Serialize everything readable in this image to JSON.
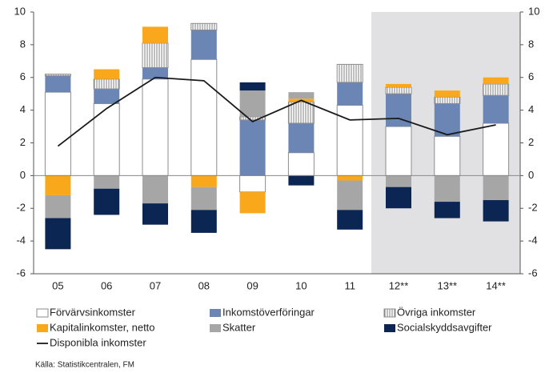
{
  "chart_data": {
    "type": "bar",
    "categories": [
      "05",
      "06",
      "07",
      "08",
      "09",
      "10",
      "11",
      "12**",
      "13**",
      "14**"
    ],
    "series": [
      {
        "name": "Förvärvsinkomster",
        "color": "#ffffff",
        "values": [
          5.1,
          4.4,
          5.9,
          7.1,
          -1.0,
          1.4,
          4.3,
          3.0,
          2.4,
          3.2
        ]
      },
      {
        "name": "Inkomstöverföringar",
        "color": "#6b86b4",
        "values": [
          1.0,
          0.9,
          0.7,
          1.8,
          3.4,
          1.8,
          1.4,
          2.0,
          2.0,
          1.7
        ]
      },
      {
        "name": "Övriga inkomster",
        "color": "#7f7f7f",
        "hatch": true,
        "values": [
          0.1,
          0.6,
          1.5,
          0.4,
          0.2,
          1.3,
          1.1,
          0.4,
          0.4,
          0.7
        ]
      },
      {
        "name": "Kapitalinkomster, netto",
        "color": "#f9a81b",
        "values": [
          -1.2,
          0.6,
          1.0,
          -0.7,
          -1.3,
          0.2,
          -0.3,
          0.2,
          0.4,
          0.4
        ]
      },
      {
        "name": "Skatter",
        "color": "#a6a6a6",
        "values": [
          -1.4,
          -0.8,
          -1.7,
          -1.4,
          1.6,
          0.4,
          -1.8,
          -0.7,
          -1.6,
          -1.5
        ]
      },
      {
        "name": "Socialskyddsavgifter",
        "color": "#0b2652",
        "values": [
          -1.9,
          -1.6,
          -1.3,
          -1.4,
          0.5,
          -0.6,
          -1.2,
          -1.3,
          -1.0,
          -1.3
        ]
      }
    ],
    "line": {
      "name": "Disponibla inkomster",
      "color": "#1a1a1a",
      "values": [
        1.8,
        4.1,
        6.0,
        5.8,
        3.3,
        4.6,
        3.4,
        3.5,
        2.5,
        3.1
      ]
    },
    "ylim": [
      -6,
      10
    ],
    "yticks": [
      -6,
      -4,
      -2,
      0,
      2,
      4,
      6,
      8,
      10
    ],
    "source": "Källa: Statistikcentralen, FM"
  }
}
